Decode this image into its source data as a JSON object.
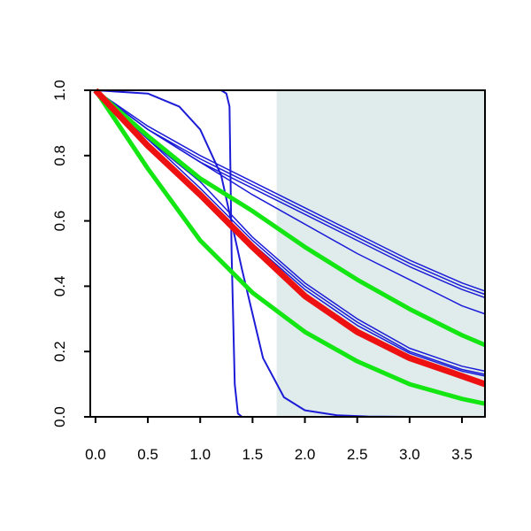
{
  "chart_data": {
    "type": "line",
    "title": "",
    "xlabel": "",
    "ylabel": "",
    "xlim": [
      -0.05,
      3.72
    ],
    "ylim": [
      0,
      1
    ],
    "x_ticks": [
      "0.0",
      "0.5",
      "1.0",
      "1.5",
      "2.0",
      "2.5",
      "3.0",
      "3.5"
    ],
    "y_ticks": [
      "0.0",
      "0.2",
      "0.4",
      "0.6",
      "0.8",
      "1.0"
    ],
    "grid": false,
    "legend": "none",
    "shaded_region": {
      "x_from": 1.73,
      "x_to": 3.72,
      "color": "#dfeceb"
    },
    "colors": {
      "blue": "#1c1cd8",
      "green": "#14e614",
      "red": "#ee1111",
      "axis": "#000000"
    },
    "series": [
      {
        "color": "blue",
        "width": 2,
        "x": [
          0,
          1.2,
          1.25,
          1.28,
          1.3,
          1.33,
          1.36,
          1.4,
          3.72
        ],
        "y": [
          1,
          1,
          0.99,
          0.95,
          0.5,
          0.1,
          0.01,
          0,
          0
        ]
      },
      {
        "color": "blue",
        "width": 2,
        "x": [
          0,
          0.5,
          0.8,
          1.0,
          1.2,
          1.4,
          1.6,
          1.8,
          2.0,
          2.3,
          2.6,
          3.0,
          3.72
        ],
        "y": [
          1,
          0.99,
          0.95,
          0.88,
          0.74,
          0.45,
          0.18,
          0.06,
          0.02,
          0.005,
          0.001,
          0,
          0
        ]
      },
      {
        "color": "blue",
        "width": 1.5,
        "x": [
          0,
          0.5,
          1.0,
          1.5,
          2.0,
          2.5,
          3.0,
          3.5,
          3.72
        ],
        "y": [
          1,
          0.85,
          0.72,
          0.55,
          0.41,
          0.3,
          0.21,
          0.155,
          0.14
        ]
      },
      {
        "color": "blue",
        "width": 1.5,
        "x": [
          0,
          0.5,
          1.0,
          1.5,
          2.0,
          2.5,
          3.0,
          3.5,
          3.72
        ],
        "y": [
          1,
          0.85,
          0.7,
          0.54,
          0.4,
          0.29,
          0.2,
          0.145,
          0.13
        ]
      },
      {
        "color": "blue",
        "width": 1.5,
        "x": [
          0,
          0.5,
          1.0,
          1.5,
          2.0,
          2.5,
          3.0,
          3.5,
          3.72
        ],
        "y": [
          1,
          0.84,
          0.69,
          0.53,
          0.39,
          0.28,
          0.195,
          0.14,
          0.125
        ]
      },
      {
        "color": "blue",
        "width": 1.5,
        "x": [
          0,
          0.5,
          1.0,
          1.5,
          2.0,
          2.5,
          3.0,
          3.5,
          3.72
        ],
        "y": [
          1,
          0.89,
          0.8,
          0.72,
          0.64,
          0.56,
          0.48,
          0.41,
          0.385
        ]
      },
      {
        "color": "blue",
        "width": 1.5,
        "x": [
          0,
          0.5,
          1.0,
          1.5,
          2.0,
          2.5,
          3.0,
          3.5,
          3.72
        ],
        "y": [
          1,
          0.88,
          0.79,
          0.71,
          0.63,
          0.55,
          0.47,
          0.4,
          0.375
        ]
      },
      {
        "color": "blue",
        "width": 1.5,
        "x": [
          0,
          0.5,
          1.0,
          1.5,
          2.0,
          2.5,
          3.0,
          3.5,
          3.72
        ],
        "y": [
          1,
          0.88,
          0.78,
          0.7,
          0.62,
          0.54,
          0.46,
          0.39,
          0.365
        ]
      },
      {
        "color": "blue",
        "width": 1.5,
        "x": [
          0,
          0.5,
          1.0,
          1.5,
          2.0,
          2.5,
          3.0,
          3.5,
          3.72
        ],
        "y": [
          1,
          0.88,
          0.78,
          0.68,
          0.59,
          0.5,
          0.42,
          0.34,
          0.315
        ]
      },
      {
        "color": "green",
        "width": 5,
        "x": [
          0,
          0.5,
          1.0,
          1.5,
          2.0,
          2.5,
          3.0,
          3.5,
          3.72
        ],
        "y": [
          1,
          0.86,
          0.73,
          0.63,
          0.52,
          0.42,
          0.33,
          0.25,
          0.22
        ]
      },
      {
        "color": "green",
        "width": 5,
        "x": [
          0,
          0.5,
          1.0,
          1.5,
          2.0,
          2.5,
          3.0,
          3.5,
          3.72
        ],
        "y": [
          1,
          0.76,
          0.54,
          0.38,
          0.26,
          0.17,
          0.1,
          0.055,
          0.04
        ]
      },
      {
        "color": "red",
        "width": 7,
        "x": [
          0,
          0.5,
          1.0,
          1.5,
          2.0,
          2.5,
          3.0,
          3.5,
          3.72
        ],
        "y": [
          1,
          0.83,
          0.68,
          0.52,
          0.37,
          0.26,
          0.18,
          0.125,
          0.1
        ]
      }
    ]
  }
}
